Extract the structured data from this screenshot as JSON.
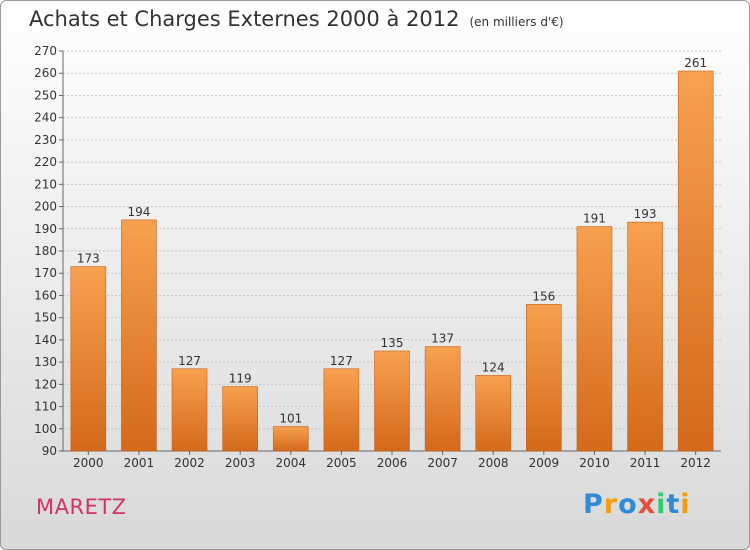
{
  "title": "Achats et Charges Externes 2000 à 2012",
  "unit": "(en milliers d'€)",
  "commune": "MARETZ",
  "logo": {
    "letters": [
      "P",
      "r",
      "o",
      "x",
      "i",
      "t",
      "i"
    ],
    "colors": [
      "#2e8bd8",
      "#f39c12",
      "#2e8bd8",
      "#e74c3c",
      "#2ecc71",
      "#2e8bd8",
      "#f39c12"
    ]
  },
  "colors": {
    "bar_top": "#f7a150",
    "bar_bottom": "#d4691a",
    "grid": "#c8c8c8",
    "axis": "#666666"
  },
  "chart_data": {
    "type": "bar",
    "title": "Achats et Charges Externes 2000 à 2012",
    "categories": [
      "2000",
      "2001",
      "2002",
      "2003",
      "2004",
      "2005",
      "2006",
      "2007",
      "2008",
      "2009",
      "2010",
      "2011",
      "2012"
    ],
    "values": [
      173,
      194,
      127,
      119,
      101,
      127,
      135,
      137,
      124,
      156,
      191,
      193,
      261
    ],
    "ylim": [
      90,
      270
    ],
    "yticks": [
      90,
      100,
      110,
      120,
      130,
      140,
      150,
      160,
      170,
      180,
      190,
      200,
      210,
      220,
      230,
      240,
      250,
      260,
      270
    ],
    "grid": true,
    "data_labels": true
  }
}
